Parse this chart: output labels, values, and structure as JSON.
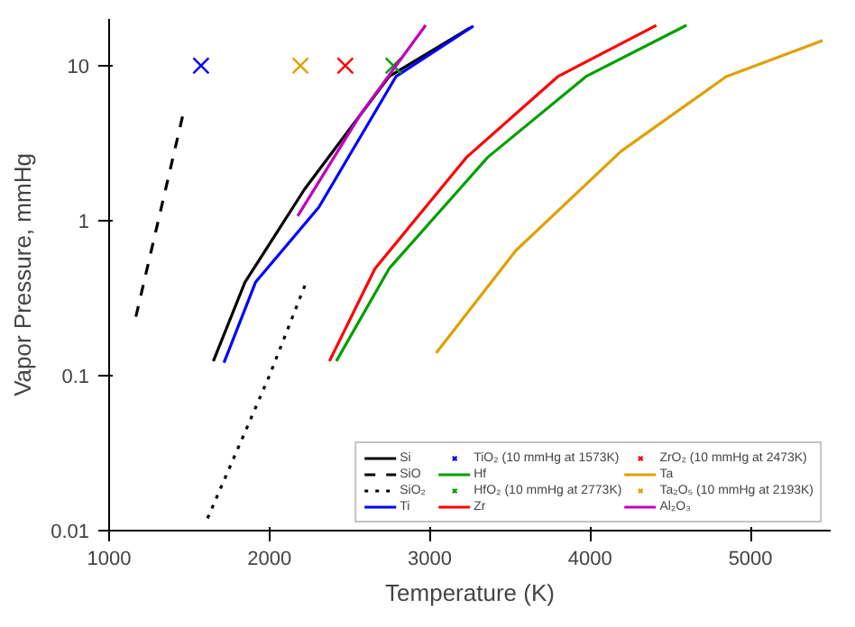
{
  "chart_data": {
    "type": "line",
    "xlabel": "Temperature (K)",
    "ylabel": "Vapor Pressure, mmHg",
    "log": "y",
    "grid": false,
    "legend": "bottom right",
    "xlim": [
      1000,
      5500
    ],
    "xticks": [
      1000,
      2000,
      3000,
      4000,
      5000
    ],
    "ylim": [
      0.01,
      20
    ],
    "yticks": [
      0.01,
      0.1,
      1,
      10
    ],
    "series": [
      {
        "name": "Si",
        "color": "#000000",
        "line_style": "solid",
        "x": [
          1650,
          1847,
          2220,
          2746,
          3250
        ],
        "values": [
          0.124,
          0.4,
          1.6,
          8.5,
          17.5
        ]
      },
      {
        "name": "SiO",
        "color": "#000000",
        "line_style": "dashed",
        "x": [
          1167,
          1466
        ],
        "values": [
          0.24,
          5.1
        ]
      },
      {
        "name": "SiO₂",
        "color": "#000000",
        "line_style": "dotted",
        "x": [
          1614,
          2000,
          2233
        ],
        "values": [
          0.012,
          0.1,
          0.41
        ]
      },
      {
        "name": "Ti",
        "color": "#0000ff",
        "line_style": "solid",
        "x": [
          1716,
          1913,
          2308,
          2789,
          3272
        ],
        "values": [
          0.121,
          0.4,
          1.22,
          8.5,
          18
        ]
      },
      {
        "name": "TiO₂ (10 mmHg at 1573K)",
        "color": "#0000ff",
        "type": "scatter",
        "marker": "cross",
        "x": [
          1573
        ],
        "values": [
          10
        ]
      },
      {
        "name": "Hf",
        "color": "#00a000",
        "line_style": "solid",
        "x": [
          2417,
          2746,
          3361,
          3974,
          4601
        ],
        "values": [
          0.124,
          0.49,
          2.56,
          8.5,
          18.2
        ]
      },
      {
        "name": "HfO₂ (10 mmHg at 2773K)",
        "color": "#00a000",
        "type": "scatter",
        "marker": "cross",
        "x": [
          2773
        ],
        "values": [
          10
        ]
      },
      {
        "name": "Zr",
        "color": "#ff0000",
        "line_style": "solid",
        "x": [
          2374,
          2658,
          3229,
          3799,
          4413
        ],
        "values": [
          0.124,
          0.49,
          2.56,
          8.5,
          18.2
        ]
      },
      {
        "name": "ZrO₂ (10 mmHg at 2473K)",
        "color": "#ff0000",
        "type": "scatter",
        "marker": "cross",
        "x": [
          2473
        ],
        "values": [
          10
        ]
      },
      {
        "name": "Ta",
        "color": "#e0a000",
        "line_style": "solid",
        "x": [
          3040,
          3536,
          4193,
          4849,
          5450
        ],
        "values": [
          0.14,
          0.64,
          2.8,
          8.5,
          14.5
        ]
      },
      {
        "name": "Ta₂O₅ (10 mmHg at 2193K)",
        "color": "#e0a000",
        "type": "scatter",
        "marker": "cross",
        "x": [
          2193
        ],
        "values": [
          10
        ]
      },
      {
        "name": "Al₂O₃",
        "color": "#c000c0",
        "line_style": "solid",
        "x": [
          2176,
          2571,
          2974
        ],
        "values": [
          1.07,
          4.9,
          18.2
        ]
      }
    ]
  }
}
